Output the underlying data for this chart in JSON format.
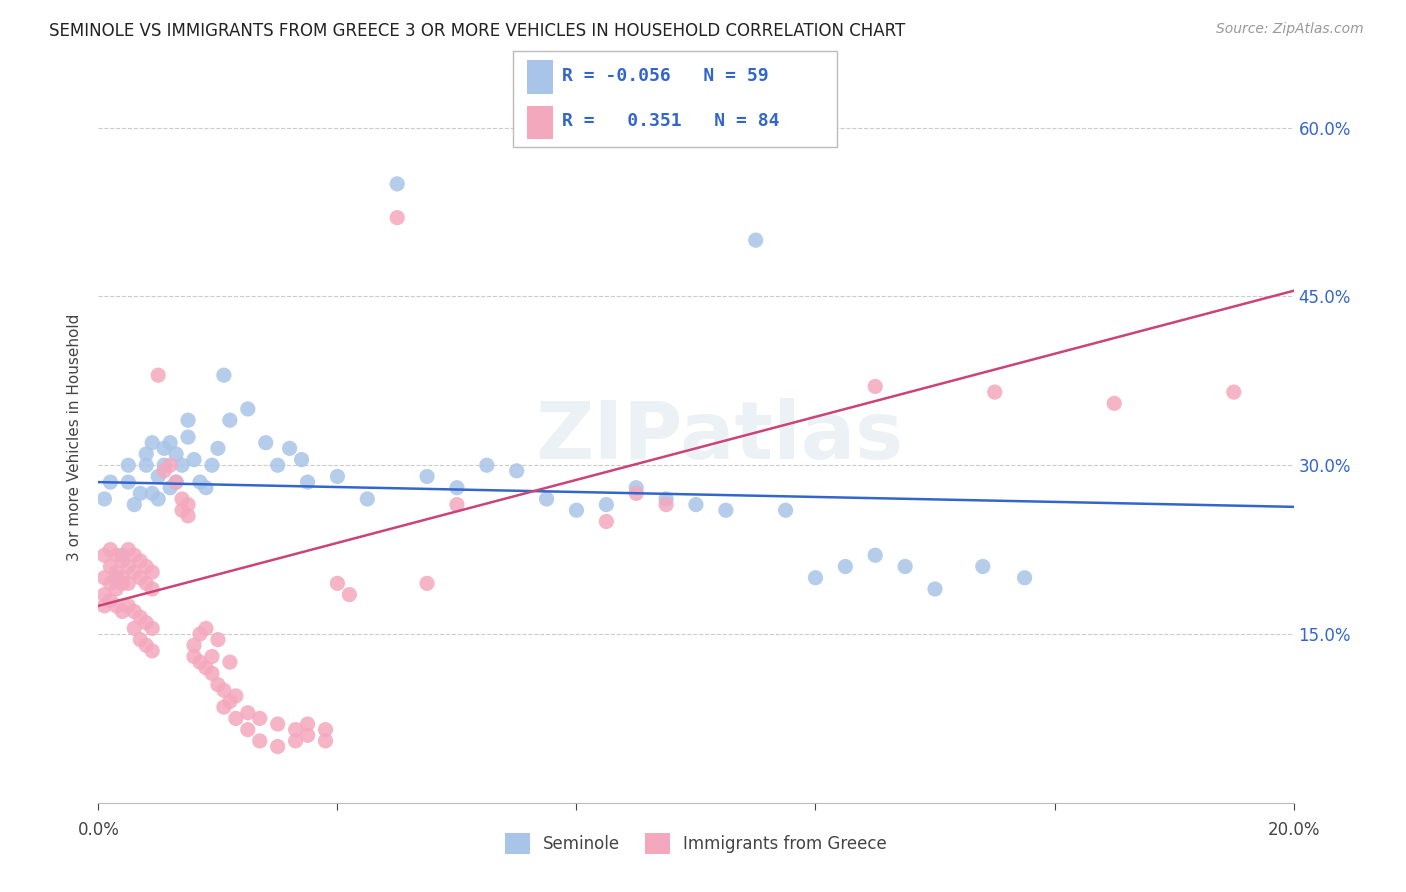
{
  "title": "SEMINOLE VS IMMIGRANTS FROM GREECE 3 OR MORE VEHICLES IN HOUSEHOLD CORRELATION CHART",
  "source": "Source: ZipAtlas.com",
  "ylabel": "3 or more Vehicles in Household",
  "xlim": [
    0.0,
    0.2
  ],
  "ylim": [
    0.0,
    0.65
  ],
  "ytick_labels_right": [
    "15.0%",
    "30.0%",
    "45.0%",
    "60.0%"
  ],
  "ytick_vals": [
    0.15,
    0.3,
    0.45,
    0.6
  ],
  "legend_label1": "Seminole",
  "legend_label2": "Immigrants from Greece",
  "R1": "-0.056",
  "N1": "59",
  "R2": "0.351",
  "N2": "84",
  "seminole_color": "#a8c4e8",
  "greece_color": "#f4a8be",
  "line1_color": "#3366cc",
  "line2_color": "#cc4477",
  "background_color": "#ffffff",
  "grid_color": "#cccccc",
  "watermark": "ZIPatlas",
  "sem_line_x0": 0.0,
  "sem_line_x1": 0.2,
  "sem_line_y0": 0.285,
  "sem_line_y1": 0.263,
  "gre_line_x0": 0.0,
  "gre_line_x1": 0.2,
  "gre_line_y0": 0.175,
  "gre_line_y1": 0.455,
  "seminole_points": [
    [
      0.001,
      0.27
    ],
    [
      0.002,
      0.285
    ],
    [
      0.003,
      0.2
    ],
    [
      0.004,
      0.22
    ],
    [
      0.005,
      0.285
    ],
    [
      0.005,
      0.3
    ],
    [
      0.006,
      0.265
    ],
    [
      0.007,
      0.275
    ],
    [
      0.008,
      0.31
    ],
    [
      0.008,
      0.3
    ],
    [
      0.009,
      0.275
    ],
    [
      0.009,
      0.32
    ],
    [
      0.01,
      0.29
    ],
    [
      0.01,
      0.27
    ],
    [
      0.011,
      0.3
    ],
    [
      0.011,
      0.315
    ],
    [
      0.012,
      0.28
    ],
    [
      0.012,
      0.32
    ],
    [
      0.013,
      0.285
    ],
    [
      0.013,
      0.31
    ],
    [
      0.014,
      0.3
    ],
    [
      0.015,
      0.34
    ],
    [
      0.015,
      0.325
    ],
    [
      0.016,
      0.305
    ],
    [
      0.017,
      0.285
    ],
    [
      0.018,
      0.28
    ],
    [
      0.019,
      0.3
    ],
    [
      0.02,
      0.315
    ],
    [
      0.021,
      0.38
    ],
    [
      0.022,
      0.34
    ],
    [
      0.025,
      0.35
    ],
    [
      0.028,
      0.32
    ],
    [
      0.03,
      0.3
    ],
    [
      0.032,
      0.315
    ],
    [
      0.034,
      0.305
    ],
    [
      0.035,
      0.285
    ],
    [
      0.04,
      0.29
    ],
    [
      0.045,
      0.27
    ],
    [
      0.05,
      0.55
    ],
    [
      0.055,
      0.29
    ],
    [
      0.06,
      0.28
    ],
    [
      0.065,
      0.3
    ],
    [
      0.07,
      0.295
    ],
    [
      0.075,
      0.27
    ],
    [
      0.08,
      0.26
    ],
    [
      0.085,
      0.265
    ],
    [
      0.09,
      0.28
    ],
    [
      0.095,
      0.27
    ],
    [
      0.1,
      0.265
    ],
    [
      0.105,
      0.26
    ],
    [
      0.11,
      0.5
    ],
    [
      0.115,
      0.26
    ],
    [
      0.12,
      0.2
    ],
    [
      0.125,
      0.21
    ],
    [
      0.13,
      0.22
    ],
    [
      0.135,
      0.21
    ],
    [
      0.14,
      0.19
    ],
    [
      0.148,
      0.21
    ],
    [
      0.155,
      0.2
    ]
  ],
  "greece_points": [
    [
      0.001,
      0.2
    ],
    [
      0.001,
      0.22
    ],
    [
      0.001,
      0.185
    ],
    [
      0.001,
      0.175
    ],
    [
      0.002,
      0.21
    ],
    [
      0.002,
      0.195
    ],
    [
      0.002,
      0.225
    ],
    [
      0.002,
      0.18
    ],
    [
      0.003,
      0.22
    ],
    [
      0.003,
      0.205
    ],
    [
      0.003,
      0.19
    ],
    [
      0.003,
      0.175
    ],
    [
      0.004,
      0.215
    ],
    [
      0.004,
      0.2
    ],
    [
      0.004,
      0.195
    ],
    [
      0.004,
      0.17
    ],
    [
      0.005,
      0.225
    ],
    [
      0.005,
      0.21
    ],
    [
      0.005,
      0.195
    ],
    [
      0.005,
      0.175
    ],
    [
      0.006,
      0.22
    ],
    [
      0.006,
      0.205
    ],
    [
      0.006,
      0.17
    ],
    [
      0.006,
      0.155
    ],
    [
      0.007,
      0.215
    ],
    [
      0.007,
      0.2
    ],
    [
      0.007,
      0.165
    ],
    [
      0.007,
      0.145
    ],
    [
      0.008,
      0.21
    ],
    [
      0.008,
      0.195
    ],
    [
      0.008,
      0.16
    ],
    [
      0.008,
      0.14
    ],
    [
      0.009,
      0.205
    ],
    [
      0.009,
      0.19
    ],
    [
      0.009,
      0.155
    ],
    [
      0.009,
      0.135
    ],
    [
      0.01,
      0.38
    ],
    [
      0.011,
      0.295
    ],
    [
      0.012,
      0.3
    ],
    [
      0.013,
      0.285
    ],
    [
      0.014,
      0.27
    ],
    [
      0.014,
      0.26
    ],
    [
      0.015,
      0.265
    ],
    [
      0.015,
      0.255
    ],
    [
      0.016,
      0.14
    ],
    [
      0.016,
      0.13
    ],
    [
      0.017,
      0.15
    ],
    [
      0.017,
      0.125
    ],
    [
      0.018,
      0.155
    ],
    [
      0.018,
      0.12
    ],
    [
      0.019,
      0.13
    ],
    [
      0.019,
      0.115
    ],
    [
      0.02,
      0.145
    ],
    [
      0.02,
      0.105
    ],
    [
      0.021,
      0.1
    ],
    [
      0.021,
      0.085
    ],
    [
      0.022,
      0.125
    ],
    [
      0.022,
      0.09
    ],
    [
      0.023,
      0.095
    ],
    [
      0.023,
      0.075
    ],
    [
      0.025,
      0.08
    ],
    [
      0.025,
      0.065
    ],
    [
      0.027,
      0.075
    ],
    [
      0.027,
      0.055
    ],
    [
      0.03,
      0.07
    ],
    [
      0.03,
      0.05
    ],
    [
      0.033,
      0.065
    ],
    [
      0.033,
      0.055
    ],
    [
      0.035,
      0.07
    ],
    [
      0.035,
      0.06
    ],
    [
      0.038,
      0.065
    ],
    [
      0.038,
      0.055
    ],
    [
      0.04,
      0.195
    ],
    [
      0.042,
      0.185
    ],
    [
      0.05,
      0.52
    ],
    [
      0.055,
      0.195
    ],
    [
      0.06,
      0.265
    ],
    [
      0.085,
      0.25
    ],
    [
      0.09,
      0.275
    ],
    [
      0.095,
      0.265
    ],
    [
      0.13,
      0.37
    ],
    [
      0.15,
      0.365
    ],
    [
      0.17,
      0.355
    ],
    [
      0.19,
      0.365
    ]
  ]
}
